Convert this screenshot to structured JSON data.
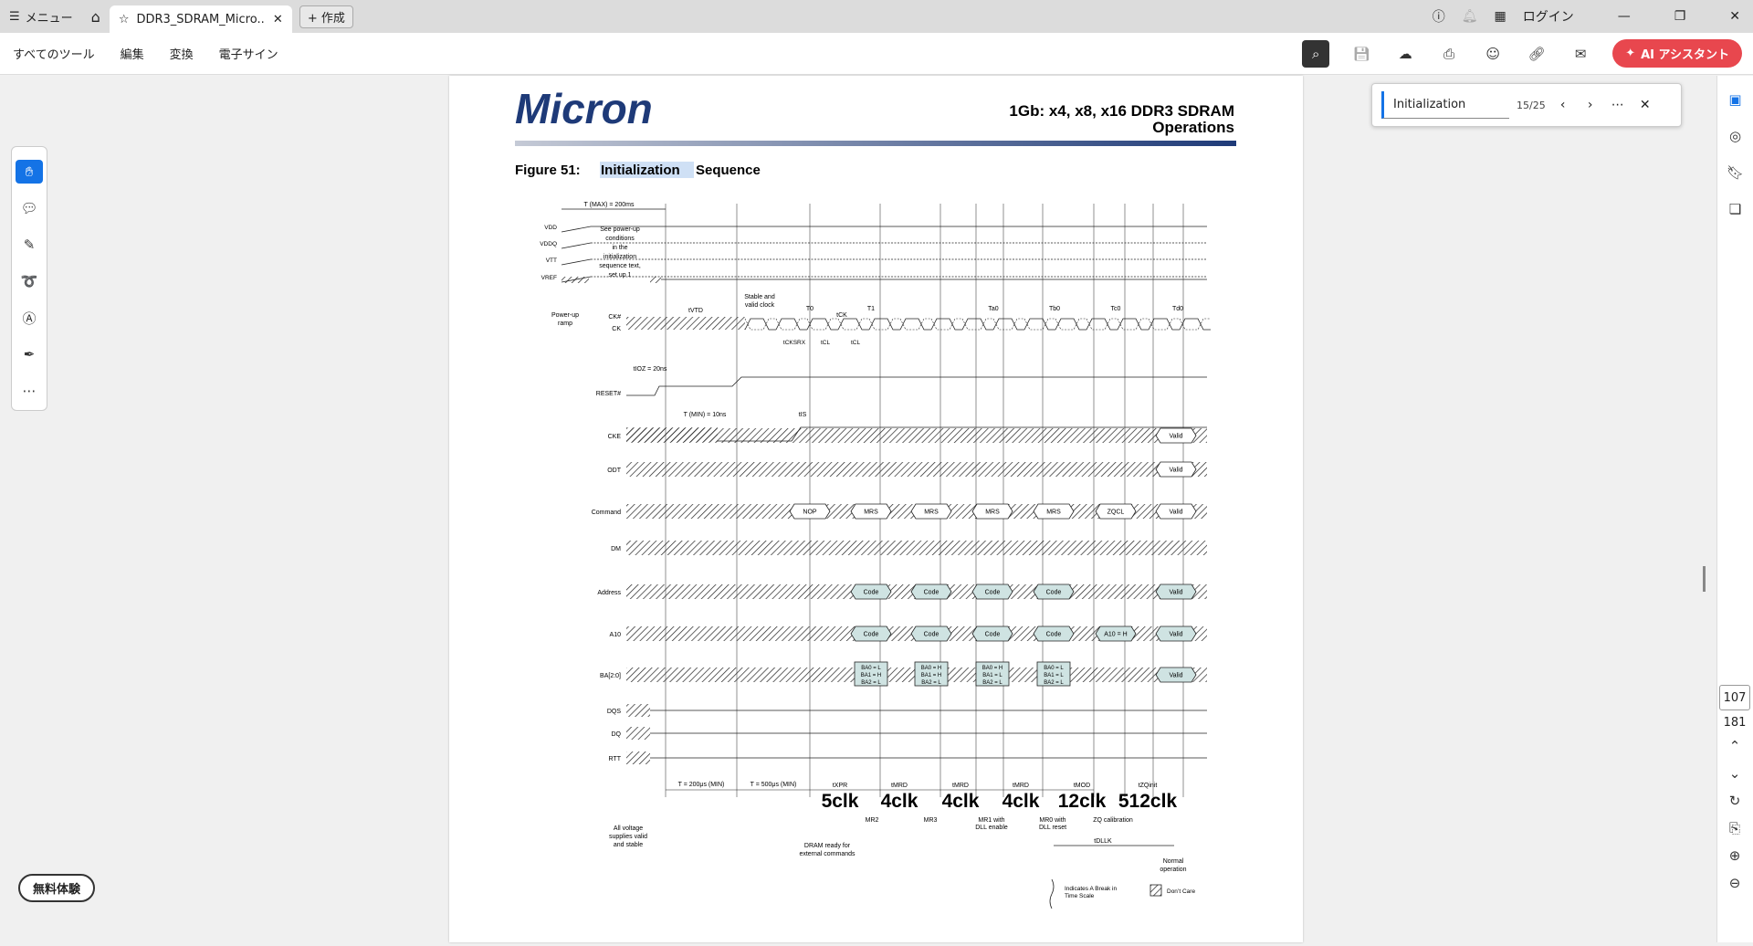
{
  "tabbar": {
    "menu_label": "メニュー",
    "tab_title": "DDR3_SDRAM_Micro...",
    "new_label": "+ 作成",
    "login_label": "ログイン"
  },
  "menubar": {
    "items": [
      "すべてのツール",
      "編集",
      "変換",
      "電子サイン"
    ],
    "ai_label": "AI アシスタント"
  },
  "trial_label": "無料体験",
  "find": {
    "query": "Initialization",
    "count": "15/25"
  },
  "pages": {
    "current": "107",
    "total": "181"
  },
  "doc": {
    "logo": "Micron",
    "header_title": "1Gb: x4, x8, x16  DDR3 SDRAM",
    "header_sub": "Operations",
    "figure_label": "Figure 51:",
    "figure_highlight": "Initialization",
    "figure_rest": " Sequence",
    "timing": {
      "tmax": "T (MAX) = 200ms",
      "power_note": [
        "See power-up",
        "conditions",
        "in the",
        "initialization",
        "sequence text,",
        "set up 1"
      ],
      "power_ramp": [
        "Power-up",
        "ramp"
      ],
      "supply_labels": [
        "VDD",
        "VDDQ",
        "VTT",
        "VREF"
      ],
      "signals": [
        "CK#",
        "CK",
        "RESET#",
        "CKE",
        "ODT",
        "Command",
        "DM",
        "Address",
        "A10",
        "BA[2:0]",
        "DQS",
        "DQ",
        "RTT"
      ],
      "tvtd": "tVTD",
      "stable_clock": [
        "Stable and",
        "valid clock"
      ],
      "t_labels": [
        "T0",
        "T1",
        "Ta0",
        "Tb0",
        "Tc0",
        "Td0"
      ],
      "tck": "tCK",
      "tcksrx": "tCKSRX",
      "tcl": "tCL",
      "tioz": "tIOZ = 20ns",
      "tmin": "T (MIN) = 10ns",
      "tis": "tIS",
      "commands": [
        "NOP",
        "MRS",
        "MRS",
        "MRS",
        "MRS",
        "ZQCL",
        "Valid"
      ],
      "code": "Code",
      "a10h": "A10 = H",
      "valid": "Valid",
      "ba_groups": [
        [
          "BA0 = L",
          "BA1 = H",
          "BA2 = L"
        ],
        [
          "BA0 = H",
          "BA1 = H",
          "BA2 = L"
        ],
        [
          "BA0 = H",
          "BA1 = L",
          "BA2 = L"
        ],
        [
          "BA0 = L",
          "BA1 = L",
          "BA2 = L"
        ]
      ],
      "t200us": "T = 200μs (MIN)",
      "t500us": "T = 500μs (MIN)",
      "bottom_t": [
        "tXPR",
        "tMRD",
        "tMRD",
        "tMRD",
        "tMOD",
        "tZQinit"
      ],
      "clks": [
        "5clk",
        "4clk",
        "4clk",
        "4clk",
        "12clk",
        "512clk"
      ],
      "mr_notes": [
        "MR2",
        "MR3",
        "MR1 with",
        "DLL enable",
        "MR0 with",
        "DLL reset",
        "ZQ calibration"
      ],
      "tdllk": "tDLLK",
      "voltage_note": [
        "All voltage",
        "supplies valid",
        "and stable"
      ],
      "dram_note": [
        "DRAM ready for",
        "external commands"
      ],
      "normal_op": [
        "Normal",
        "operation"
      ],
      "legend_break": [
        "Indicates A Break in",
        "Time Scale"
      ],
      "legend_dontcare": "Don’t Care"
    }
  }
}
